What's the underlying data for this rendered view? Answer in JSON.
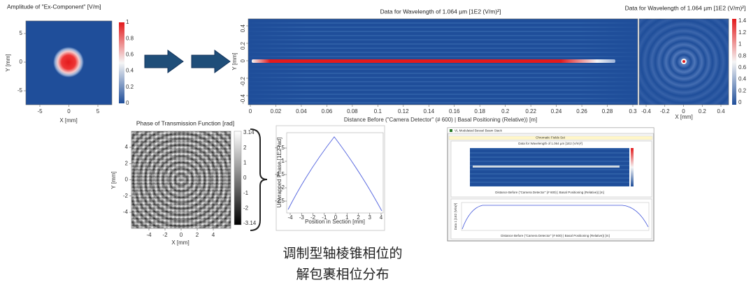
{
  "amplitude_panel": {
    "title": "Amplitude of \"Ex-Component\"  [V/m]",
    "x_label": "X [mm]",
    "y_label": "Y [mm]",
    "x_ticks": [
      "-5",
      "0",
      "5"
    ],
    "y_ticks": [
      "5",
      "0",
      "-5"
    ],
    "colorbar_ticks": [
      "1",
      "0.8",
      "0.6",
      "0.4",
      "0.2",
      "0"
    ]
  },
  "main_panel": {
    "title": "Data for Wavelength of 1.064 µm  [1E2 (V/m)²]",
    "x_label": "Distance Before (\"Camera Detector\" (# 600) | Basal Positioning (Relative)) [m]",
    "y_label": "Y [mm]",
    "x_ticks": [
      "0",
      "0.02",
      "0.04",
      "0.06",
      "0.08",
      "0.1",
      "0.12",
      "0.14",
      "0.16",
      "0.18",
      "0.2",
      "0.22",
      "0.24",
      "0.26",
      "0.28",
      "0.3"
    ],
    "y_ticks": [
      "0.4",
      "0.2",
      "0",
      "-0.2",
      "-0.4"
    ]
  },
  "ring_panel": {
    "title": "Data for Wavelength of 1.064 µm  [1E2 (V/m)²]",
    "x_label": "X [mm]",
    "x_ticks": [
      "-0.4",
      "-0.2",
      "0",
      "0.2",
      "0.4"
    ],
    "colorbar_ticks": [
      "1.4",
      "1.2",
      "1",
      "0.8",
      "0.6",
      "0.4",
      "0.2",
      "0"
    ]
  },
  "phase_panel": {
    "title": "Phase of Transmission Function  [rad]",
    "x_label": "X [mm]",
    "y_label": "Y [mm]",
    "x_ticks": [
      "-4",
      "-2",
      "0",
      "2",
      "4"
    ],
    "y_ticks": [
      "4",
      "2",
      "0",
      "-2",
      "-4"
    ],
    "colorbar_ticks": [
      "3.14",
      "2",
      "1",
      "0",
      "-1",
      "-2",
      "-3.14"
    ]
  },
  "unwrapped_panel": {
    "x_label": "Position in Section [mm]",
    "y_label": "Unwrapped Phase [1E2 rad]",
    "x_ticks": [
      "-4",
      "-3",
      "-2",
      "-1",
      "0",
      "1",
      "2",
      "3",
      "4"
    ],
    "y_ticks": [
      "-0.5",
      "-1",
      "-1.5",
      "-2",
      "-2.5"
    ]
  },
  "window": {
    "title": "VL Modulated Bessel Beam Stack",
    "tab": "Chromatic Fields Set",
    "plot_title": "Data for Wavelength of 1.064 µm  [1E2 (V/m)²]",
    "plot_x_label": "Distance Before (\"Camera Detector\" (# 600) | Basal Positioning (Relative)) [m]",
    "lower_y_label": "Data 1 [1E2 (V/m)²]",
    "lower_x_label": "Distance Before (\"Camera Detector\" (# 600) | Basal Positioning (Relative)) [m]"
  },
  "caption": [
    "调制型轴棱锥相位的",
    "解包裹相位分布"
  ]
}
